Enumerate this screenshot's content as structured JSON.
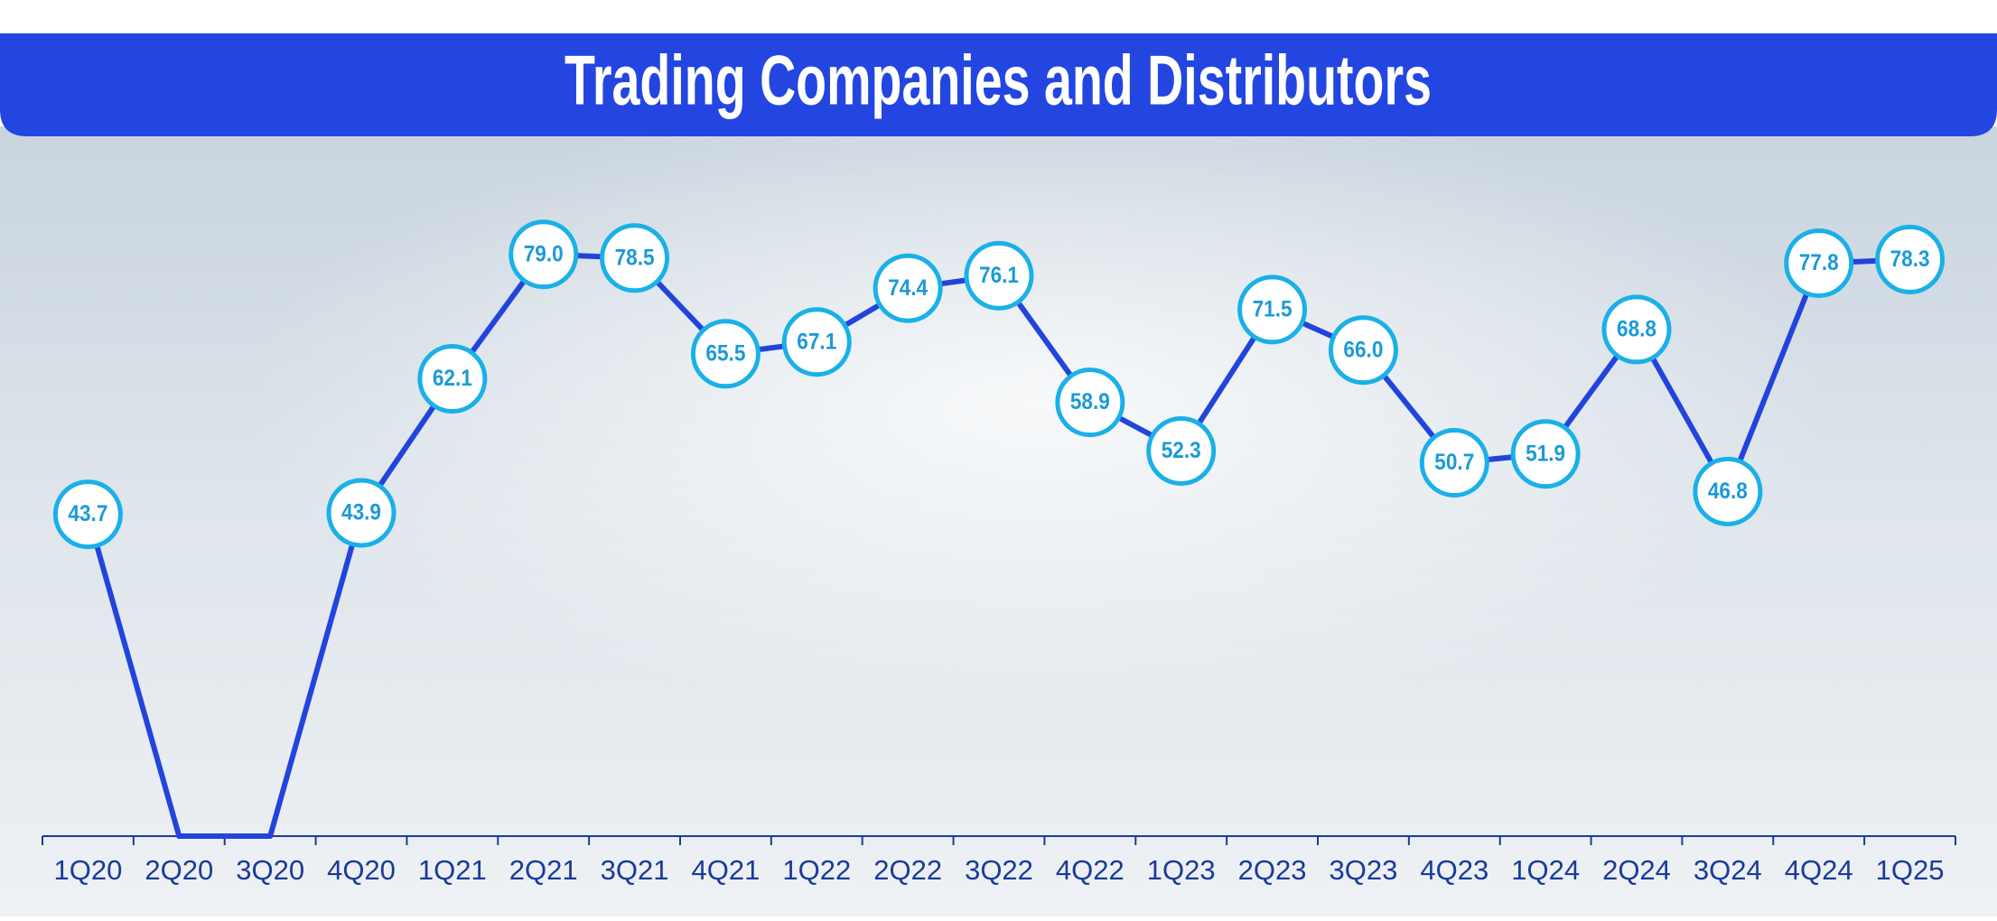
{
  "chart_data": {
    "type": "line",
    "title": "Trading Companies and Distributors",
    "categories": [
      "1Q20",
      "2Q20",
      "3Q20",
      "4Q20",
      "1Q21",
      "2Q21",
      "3Q21",
      "4Q21",
      "1Q22",
      "2Q22",
      "3Q22",
      "4Q22",
      "1Q23",
      "2Q23",
      "3Q23",
      "4Q23",
      "1Q24",
      "2Q24",
      "3Q24",
      "4Q24",
      "1Q25"
    ],
    "values": [
      43.7,
      0,
      0,
      43.9,
      62.1,
      79.0,
      78.5,
      65.5,
      67.1,
      74.4,
      76.1,
      58.9,
      52.3,
      71.5,
      66.0,
      50.7,
      51.9,
      68.8,
      46.8,
      77.8,
      78.3
    ],
    "value_labels": [
      "43.7",
      null,
      null,
      "43.9",
      "62.1",
      "79.0",
      "78.5",
      "65.5",
      "67.1",
      "74.4",
      "76.1",
      "58.9",
      "52.3",
      "71.5",
      "66.0",
      "50.7",
      "51.9",
      "68.8",
      "46.8",
      "77.8",
      "78.3"
    ],
    "color": "#2244dd",
    "marker_color": "#1ab0e8",
    "ylim": [
      0,
      90
    ]
  }
}
